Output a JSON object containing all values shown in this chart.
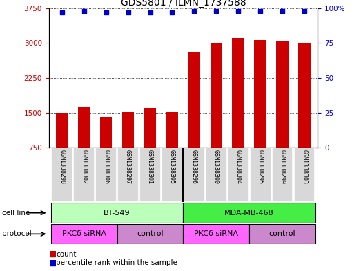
{
  "title": "GDS5801 / ILMN_1737588",
  "samples": [
    "GSM1338298",
    "GSM1338302",
    "GSM1338306",
    "GSM1338297",
    "GSM1338301",
    "GSM1338305",
    "GSM1338296",
    "GSM1338300",
    "GSM1338304",
    "GSM1338295",
    "GSM1338299",
    "GSM1338303"
  ],
  "counts": [
    1490,
    1620,
    1420,
    1530,
    1600,
    1510,
    2820,
    2990,
    3110,
    3060,
    3050,
    3010
  ],
  "percentiles": [
    97,
    98,
    97,
    97,
    97,
    97,
    98,
    98,
    98,
    98,
    98,
    98
  ],
  "ylim_left": [
    750,
    3750
  ],
  "ylim_right": [
    0,
    100
  ],
  "yticks_left": [
    750,
    1500,
    2250,
    3000,
    3750
  ],
  "yticks_right": [
    0,
    25,
    50,
    75,
    100
  ],
  "bar_color": "#cc0000",
  "dot_color": "#0000cc",
  "cell_line_groups": [
    {
      "label": "BT-549",
      "start": 0,
      "end": 5,
      "color": "#bbffbb"
    },
    {
      "label": "MDA-MB-468",
      "start": 6,
      "end": 11,
      "color": "#44ee44"
    }
  ],
  "protocol_groups": [
    {
      "label": "PKCδ siRNA",
      "start": 0,
      "end": 2,
      "color": "#ff66ff"
    },
    {
      "label": "control",
      "start": 3,
      "end": 5,
      "color": "#cc88cc"
    },
    {
      "label": "PKCδ siRNA",
      "start": 6,
      "end": 8,
      "color": "#ff66ff"
    },
    {
      "label": "control",
      "start": 9,
      "end": 11,
      "color": "#cc88cc"
    }
  ],
  "cell_line_row_label": "cell line",
  "protocol_row_label": "protocol",
  "background_color": "#ffffff",
  "title_fontsize": 10,
  "tick_fontsize": 7.5,
  "sample_fontsize": 6,
  "row_label_fontsize": 7.5,
  "row_text_fontsize": 8,
  "legend_fontsize": 7.5
}
